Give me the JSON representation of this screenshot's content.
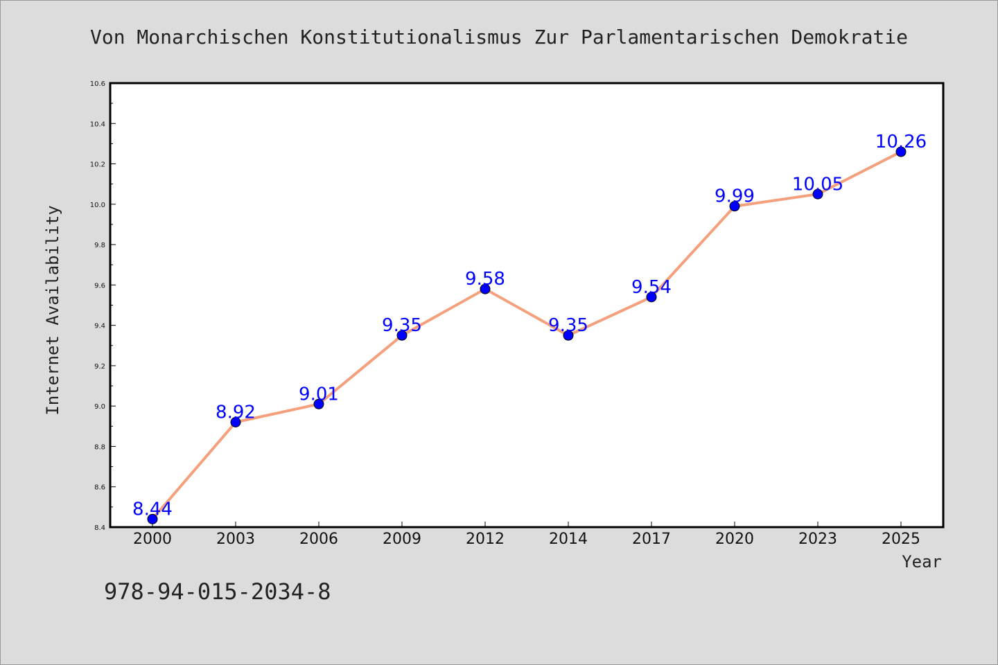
{
  "chart_data": {
    "type": "line",
    "title": "Von Monarchischen Konstitutionalismus Zur Parlamentarischen Demokratie",
    "xlabel": "Year",
    "ylabel": "Internet Availability",
    "categories": [
      "2000",
      "2003",
      "2006",
      "2009",
      "2012",
      "2014",
      "2017",
      "2020",
      "2023",
      "2025"
    ],
    "series": [
      {
        "values": [
          8.44,
          8.92,
          9.01,
          9.35,
          9.58,
          9.35,
          9.54,
          9.99,
          10.05,
          10.26
        ],
        "line_color": "#f4a07c",
        "marker_color": "#0000ff"
      }
    ],
    "data_labels": [
      "8.44",
      "8.92",
      "9.01",
      "9.35",
      "9.58",
      "9.35",
      "9.54",
      "9.99",
      "10.05",
      "10.26"
    ],
    "label_color": "#0000ff",
    "ylim": [
      8.4,
      10.6
    ],
    "yticks": [
      "8.4",
      "8.6",
      "8.8",
      "9.0",
      "9.2",
      "9.4",
      "9.6",
      "9.8",
      "10.0",
      "10.2",
      "10.4",
      "10.6"
    ],
    "grid": false,
    "plot_background": "#ffffff",
    "page_background": "#dcdcdc"
  },
  "footer": {
    "isbn": "978-94-015-2034-8"
  }
}
